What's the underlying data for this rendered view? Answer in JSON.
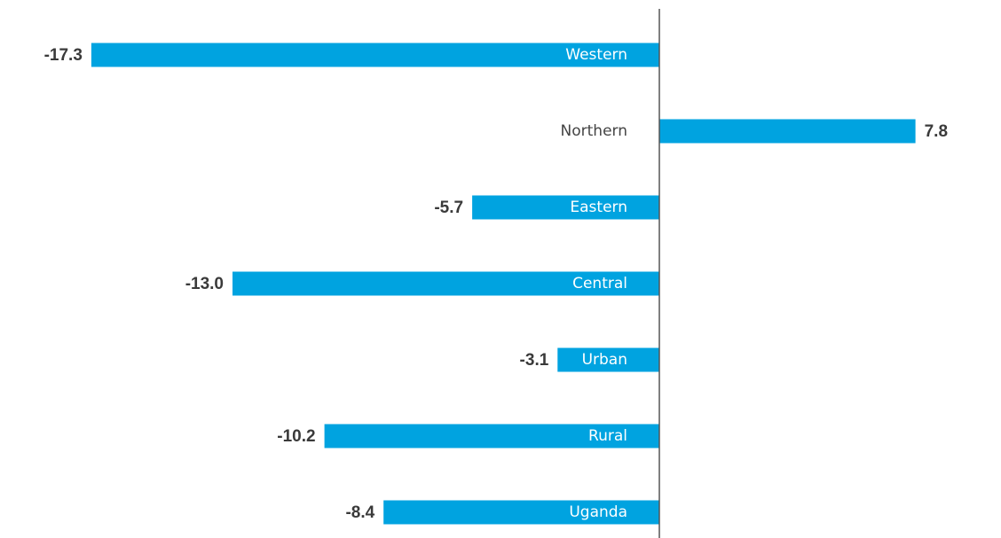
{
  "chart_data": {
    "type": "hbar",
    "categories": [
      "Western",
      "Northern",
      "Eastern",
      "Central",
      "Urban",
      "Rural",
      "Uganda"
    ],
    "values": [
      -17.3,
      7.8,
      -5.7,
      -13.0,
      -3.1,
      -10.2,
      -8.4
    ],
    "value_labels": [
      "-17.3",
      "7.8",
      "-5.7",
      "-13.0",
      "-3.1",
      "-10.2",
      "-8.4"
    ],
    "color": "#00a3e0",
    "xlim": [
      -19,
      10
    ]
  }
}
